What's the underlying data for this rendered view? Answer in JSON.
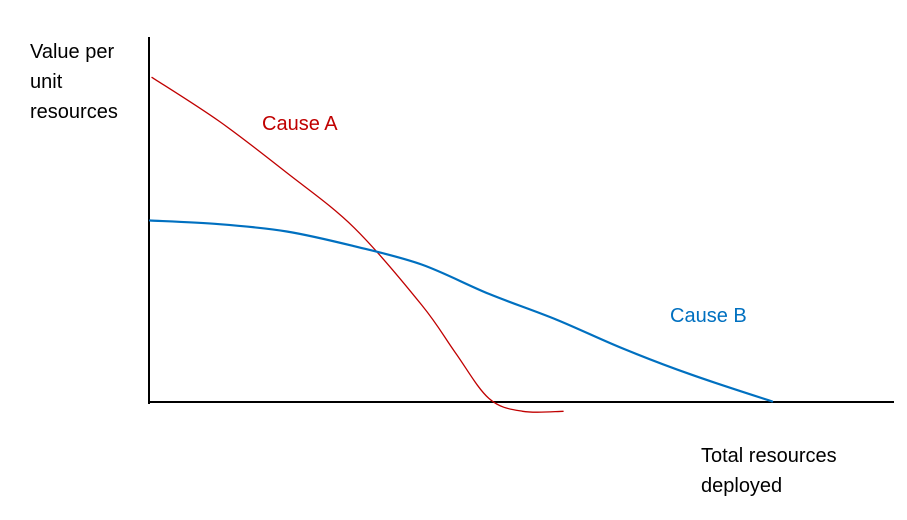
{
  "chart_data": {
    "type": "line",
    "title": "",
    "ylabel_lines": [
      "Value per",
      "unit",
      "resources"
    ],
    "xlabel_lines": [
      "Total resources",
      "deployed"
    ],
    "xlim": [
      0,
      100
    ],
    "ylim": [
      0,
      100
    ],
    "grid": false,
    "legend": "none",
    "series": [
      {
        "name": "Cause A",
        "color": "#c00000",
        "x": [
          0,
          10,
          20,
          30,
          40,
          45,
          50,
          55,
          61
        ],
        "y": [
          89,
          77,
          63,
          48,
          27,
          14,
          1.5,
          -2,
          -2
        ]
      },
      {
        "name": "Cause B",
        "color": "#0070c0",
        "x": [
          -0.3,
          10,
          20,
          30,
          40,
          50,
          60,
          70,
          80,
          92
        ],
        "y": [
          50,
          49,
          47,
          43,
          38,
          30,
          23,
          15,
          8,
          0.7
        ]
      }
    ]
  }
}
